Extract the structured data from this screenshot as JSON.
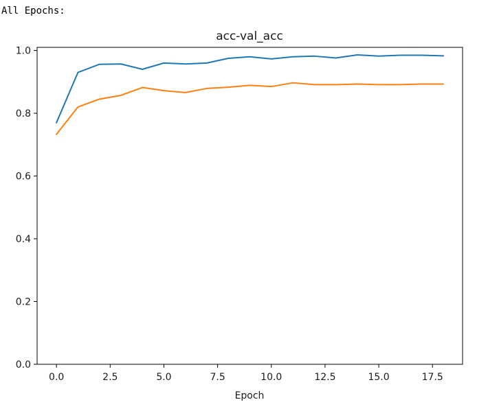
{
  "output_label": "All Epochs:",
  "colors": {
    "series_1": "#1f77b4",
    "series_2": "#ff7f0e",
    "axis": "#000000",
    "text": "#1a1a1a",
    "background": "#ffffff"
  },
  "chart_data": {
    "type": "line",
    "title": "acc-val_acc",
    "xlabel": "Epoch",
    "ylabel": "",
    "xlim": [
      -0.9,
      18.9
    ],
    "ylim": [
      0.0,
      1.01
    ],
    "grid": false,
    "legend": "none",
    "x_ticks": [
      "0.0",
      "2.5",
      "5.0",
      "7.5",
      "10.0",
      "12.5",
      "15.0",
      "17.5"
    ],
    "y_ticks": [
      "0.0",
      "0.2",
      "0.4",
      "0.6",
      "0.8",
      "1.0"
    ],
    "x": [
      0,
      1,
      2,
      3,
      4,
      5,
      6,
      7,
      8,
      9,
      10,
      11,
      12,
      13,
      14,
      15,
      16,
      17,
      18
    ],
    "series": [
      {
        "color": "#1f77b4",
        "values": [
          0.77,
          0.93,
          0.956,
          0.957,
          0.94,
          0.96,
          0.957,
          0.96,
          0.975,
          0.98,
          0.973,
          0.98,
          0.982,
          0.976,
          0.986,
          0.982,
          0.985,
          0.985,
          0.983
        ]
      },
      {
        "color": "#ff7f0e",
        "values": [
          0.733,
          0.82,
          0.845,
          0.857,
          0.882,
          0.872,
          0.866,
          0.879,
          0.883,
          0.889,
          0.885,
          0.897,
          0.891,
          0.891,
          0.893,
          0.891,
          0.891,
          0.893,
          0.893
        ]
      }
    ]
  }
}
